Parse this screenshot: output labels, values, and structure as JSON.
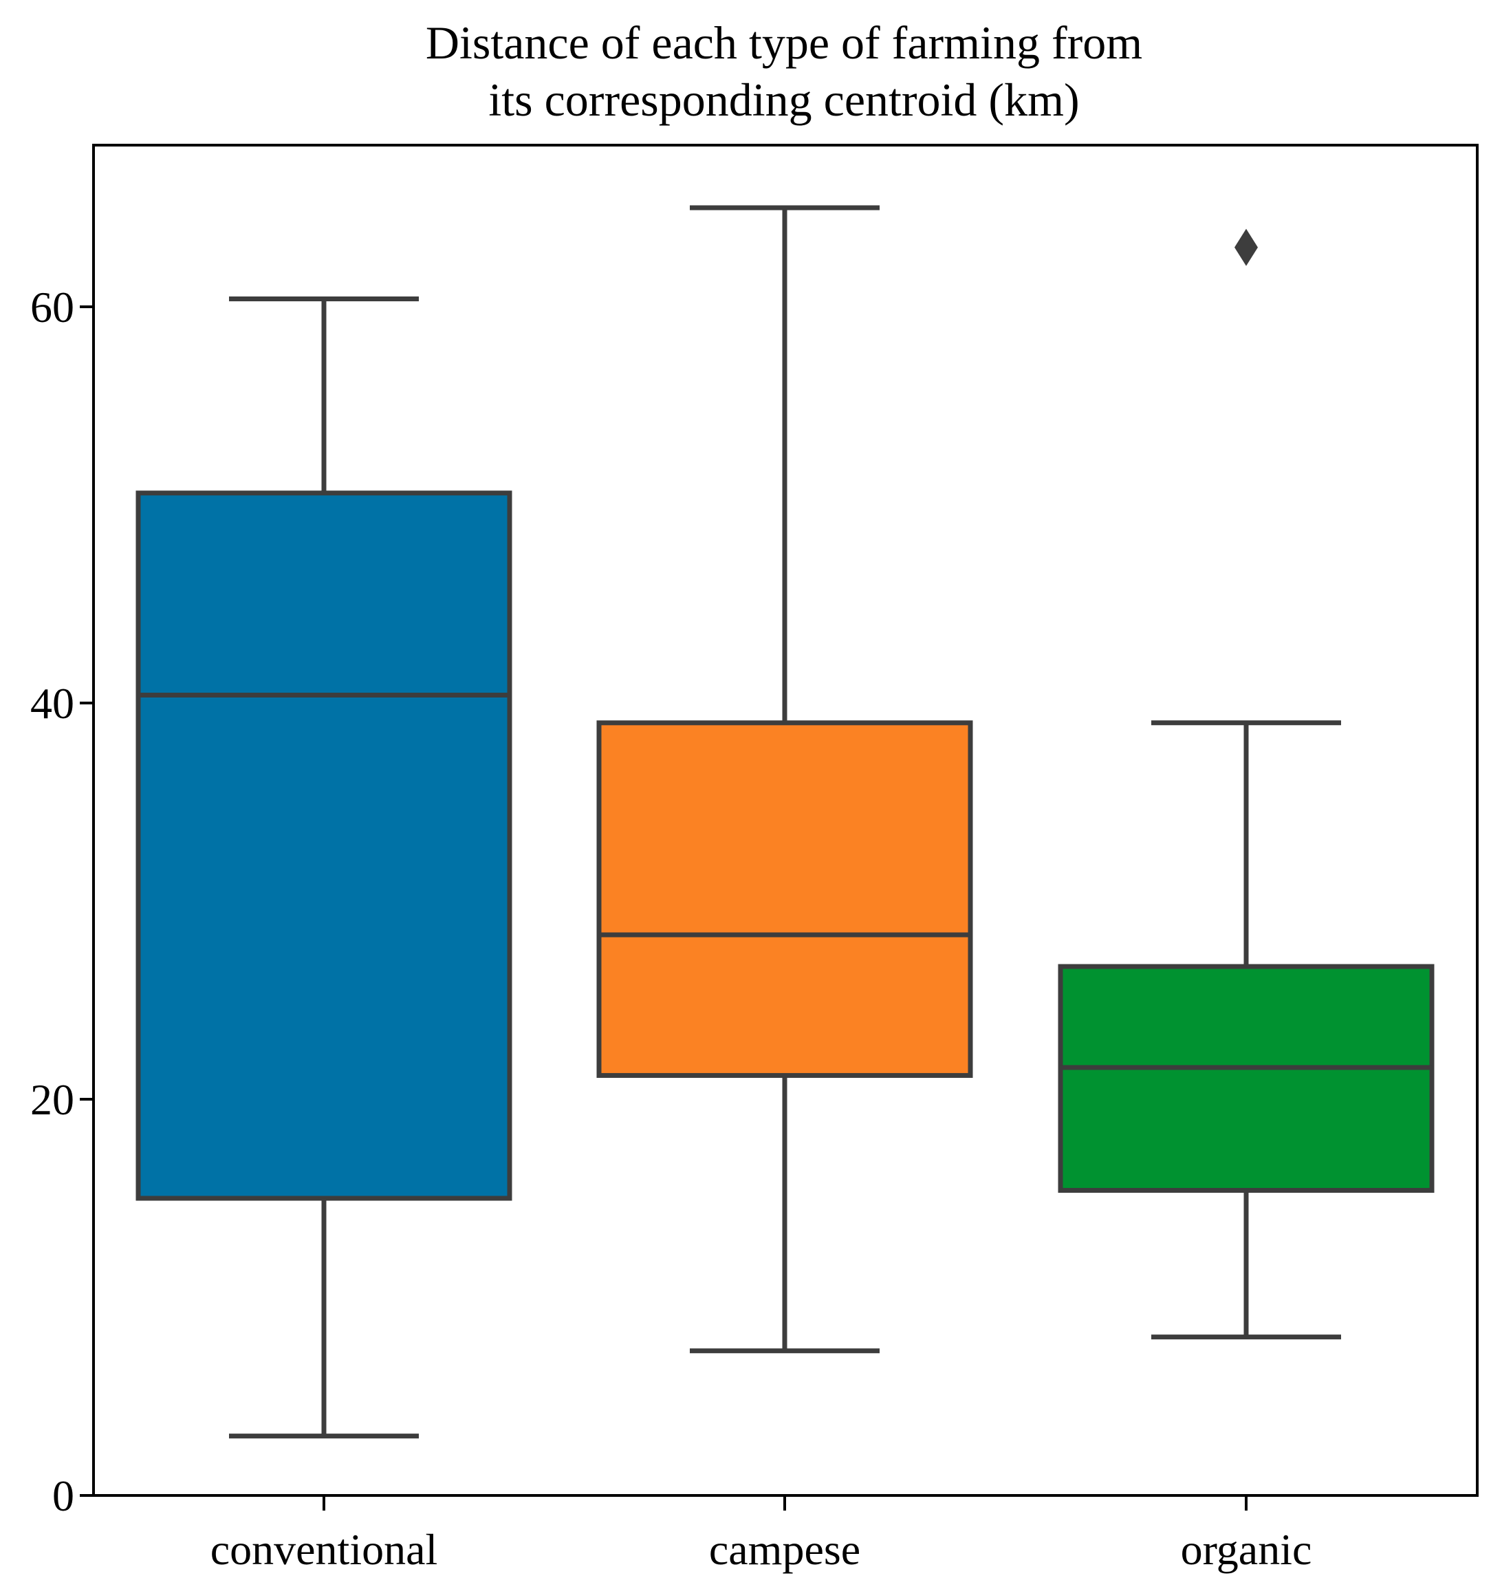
{
  "chart_data": {
    "type": "box",
    "title_lines": [
      "Distance of each type of farming from",
      "its corresponding centroid (km)"
    ],
    "xlabel": "",
    "ylabel": "",
    "ylim": [
      0,
      68
    ],
    "yticks": [
      0,
      20,
      40,
      60
    ],
    "ytick_labels": [
      "0",
      "20",
      "40",
      "60"
    ],
    "grid": false,
    "edge_color": "#3d3d3d",
    "series": [
      {
        "name": "conventional",
        "color": "#0072a6",
        "whisker_low": 3.0,
        "q1": 15.0,
        "median": 40.4,
        "q3": 50.6,
        "whisker_high": 60.4,
        "outliers": []
      },
      {
        "name": "campese",
        "color": "#fb8223",
        "whisker_low": 7.3,
        "q1": 21.2,
        "median": 28.3,
        "q3": 39.0,
        "whisker_high": 65.0,
        "outliers": []
      },
      {
        "name": "organic",
        "color": "#009230",
        "whisker_low": 8.0,
        "q1": 15.4,
        "median": 21.6,
        "q3": 26.7,
        "whisker_high": 39.0,
        "outliers": [
          63.0
        ]
      }
    ]
  }
}
